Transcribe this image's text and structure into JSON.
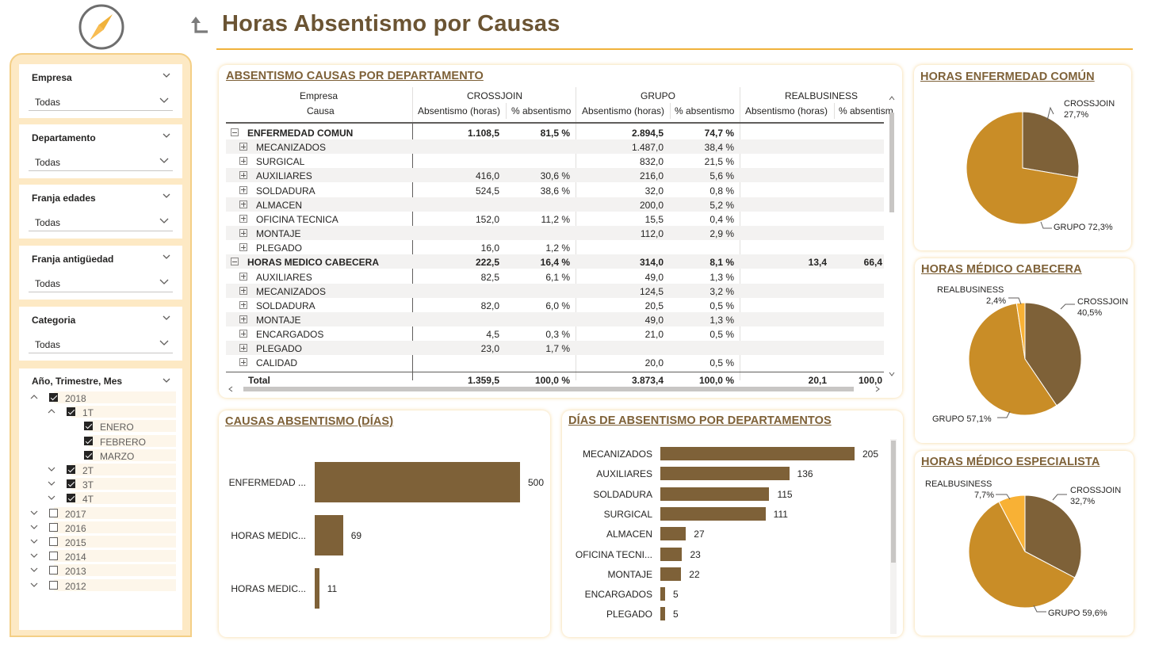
{
  "header": {
    "title": "Horas Absentismo por Causas"
  },
  "colors": {
    "brown": "#7e6138",
    "gold": "#c98d27",
    "orange": "#f8b135",
    "accent": "#f0b23b",
    "panel": "#fde9c4"
  },
  "slicers": [
    {
      "title": "Empresa",
      "value": "Todas"
    },
    {
      "title": "Departamento",
      "value": "Todas"
    },
    {
      "title": "Franja edades",
      "value": "Todas"
    },
    {
      "title": "Franja antigüedad",
      "value": "Todas"
    },
    {
      "title": "Categoria",
      "value": "Todas"
    }
  ],
  "date_slicer": {
    "title": "Año, Trimestre, Mes",
    "items": [
      {
        "label": "2018",
        "level": 0,
        "expanded": true,
        "checked": true
      },
      {
        "label": "1T",
        "level": 1,
        "expanded": true,
        "checked": true
      },
      {
        "label": "ENERO",
        "level": 2,
        "checked": true
      },
      {
        "label": "FEBRERO",
        "level": 2,
        "checked": true
      },
      {
        "label": "MARZO",
        "level": 2,
        "checked": true
      },
      {
        "label": "2T",
        "level": 1,
        "expanded": false,
        "checked": true
      },
      {
        "label": "3T",
        "level": 1,
        "expanded": false,
        "checked": true
      },
      {
        "label": "4T",
        "level": 1,
        "expanded": false,
        "checked": true
      },
      {
        "label": "2017",
        "level": 0,
        "expanded": false,
        "checked": false
      },
      {
        "label": "2016",
        "level": 0,
        "expanded": false,
        "checked": false
      },
      {
        "label": "2015",
        "level": 0,
        "expanded": false,
        "checked": false
      },
      {
        "label": "2014",
        "level": 0,
        "expanded": false,
        "checked": false
      },
      {
        "label": "2013",
        "level": 0,
        "expanded": false,
        "checked": false
      },
      {
        "label": "2012",
        "level": 0,
        "expanded": false,
        "checked": false
      }
    ]
  },
  "matrix": {
    "title": "ABSENTISMO CAUSAS POR DEPARTAMENTO",
    "row_header_1": "Empresa",
    "row_header_2": "Causa",
    "companies": [
      "CROSSJOIN",
      "GRUPO",
      "REALBUSINESS"
    ],
    "measures": [
      "Absentismo (horas)",
      "% absentismo",
      "Absentismo (horas)",
      "% absentismo",
      "Absentismo (horas)",
      "% absentism"
    ],
    "rows": [
      {
        "name": "ENFERMEDAD COMUN",
        "group": true,
        "values": [
          "1.108,5",
          "81,5 %",
          "2.894,5",
          "74,7 %",
          "",
          ""
        ]
      },
      {
        "name": "MECANIZADOS",
        "values": [
          "",
          "",
          "1.487,0",
          "38,4 %",
          "",
          ""
        ]
      },
      {
        "name": "SURGICAL",
        "values": [
          "",
          "",
          "832,0",
          "21,5 %",
          "",
          ""
        ]
      },
      {
        "name": "AUXILIARES",
        "values": [
          "416,0",
          "30,6 %",
          "216,0",
          "5,6 %",
          "",
          ""
        ]
      },
      {
        "name": "SOLDADURA",
        "values": [
          "524,5",
          "38,6 %",
          "32,0",
          "0,8 %",
          "",
          ""
        ]
      },
      {
        "name": "ALMACEN",
        "values": [
          "",
          "",
          "200,0",
          "5,2 %",
          "",
          ""
        ]
      },
      {
        "name": "OFICINA TECNICA",
        "values": [
          "152,0",
          "11,2 %",
          "15,5",
          "0,4 %",
          "",
          ""
        ]
      },
      {
        "name": "MONTAJE",
        "values": [
          "",
          "",
          "112,0",
          "2,9 %",
          "",
          ""
        ]
      },
      {
        "name": "PLEGADO",
        "values": [
          "16,0",
          "1,2 %",
          "",
          "",
          "",
          ""
        ]
      },
      {
        "name": "HORAS MEDICO CABECERA",
        "group": true,
        "values": [
          "222,5",
          "16,4 %",
          "314,0",
          "8,1 %",
          "13,4",
          "66,4"
        ]
      },
      {
        "name": "AUXILIARES",
        "values": [
          "82,5",
          "6,1 %",
          "49,0",
          "1,3 %",
          "",
          ""
        ]
      },
      {
        "name": "MECANIZADOS",
        "values": [
          "",
          "",
          "124,5",
          "3,2 %",
          "",
          ""
        ]
      },
      {
        "name": "SOLDADURA",
        "values": [
          "82,0",
          "6,0 %",
          "20,5",
          "0,5 %",
          "",
          ""
        ]
      },
      {
        "name": "MONTAJE",
        "values": [
          "",
          "",
          "49,0",
          "1,3 %",
          "",
          ""
        ]
      },
      {
        "name": "ENCARGADOS",
        "values": [
          "4,5",
          "0,3 %",
          "21,0",
          "0,5 %",
          "",
          ""
        ]
      },
      {
        "name": "PLEGADO",
        "values": [
          "23,0",
          "1,7 %",
          "",
          "",
          "",
          ""
        ]
      },
      {
        "name": "CALIDAD",
        "values": [
          "",
          "",
          "20,0",
          "0,5 %",
          "",
          ""
        ]
      }
    ],
    "total": {
      "name": "Total",
      "values": [
        "1.359,5",
        "100,0 %",
        "3.873,4",
        "100,0 %",
        "20,1",
        "100,0"
      ]
    }
  },
  "chart_data": [
    {
      "type": "bar",
      "title": "CAUSAS ABSENTISMO (DÍAS)",
      "orientation": "vertical",
      "categories": [
        "ENFERMEDAD ...",
        "HORAS MEDIC...",
        "HORAS MEDIC..."
      ],
      "values": [
        500,
        69,
        11
      ],
      "value_labels": [
        "500",
        "69",
        "11"
      ],
      "xlim": [
        0,
        500
      ]
    },
    {
      "type": "bar",
      "title": "DÍAS DE ABSENTISMO POR DEPARTAMENTOS",
      "orientation": "horizontal",
      "categories": [
        "MECANIZADOS",
        "AUXILIARES",
        "SOLDADURA",
        "SURGICAL",
        "ALMACEN",
        "OFICINA TECNI...",
        "MONTAJE",
        "ENCARGADOS",
        "PLEGADO"
      ],
      "values": [
        205,
        136,
        115,
        111,
        27,
        23,
        22,
        5,
        5
      ],
      "value_labels": [
        "205",
        "136",
        "115",
        "111",
        "27",
        "23",
        "22",
        "5",
        "5"
      ],
      "xlim": [
        0,
        205
      ]
    },
    {
      "type": "pie",
      "title": "HORAS ENFERMEDAD COMÚN",
      "slices": [
        {
          "name": "CROSSJOIN",
          "value": 27.7,
          "label": "27,7%",
          "color": "#7e6138"
        },
        {
          "name": "GRUPO",
          "value": 72.3,
          "label": "72,3%",
          "color": "#c98d27"
        }
      ]
    },
    {
      "type": "pie",
      "title": "HORAS MÉDICO CABECERA",
      "slices": [
        {
          "name": "CROSSJOIN",
          "value": 40.5,
          "label": "40,5%",
          "color": "#7e6138"
        },
        {
          "name": "GRUPO",
          "value": 57.1,
          "label": "57,1%",
          "color": "#c98d27"
        },
        {
          "name": "REALBUSINESS",
          "value": 2.4,
          "label": "2,4%",
          "color": "#f8b135"
        }
      ]
    },
    {
      "type": "pie",
      "title": "HORAS MÉDICO ESPECIALISTA",
      "slices": [
        {
          "name": "CROSSJOIN",
          "value": 32.7,
          "label": "32,7%",
          "color": "#7e6138"
        },
        {
          "name": "GRUPO",
          "value": 59.6,
          "label": "59,6%",
          "color": "#c98d27"
        },
        {
          "name": "REALBUSINESS",
          "value": 7.7,
          "label": "7,7%",
          "color": "#f8b135"
        }
      ]
    }
  ]
}
